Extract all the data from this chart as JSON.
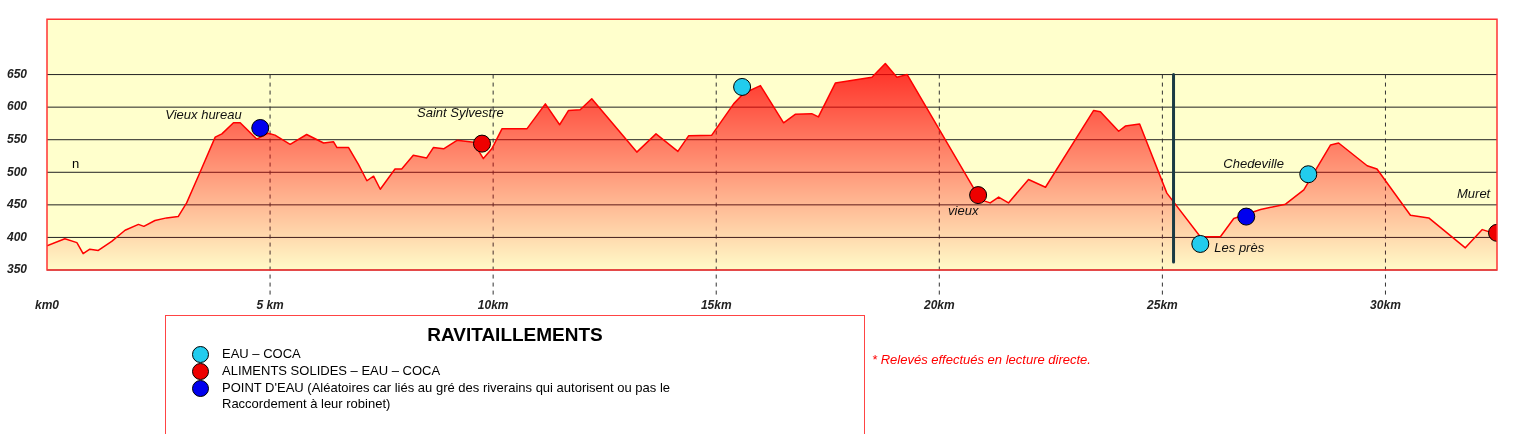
{
  "chart_data": {
    "type": "area",
    "ylabel": null,
    "legend_title": "RAVITAILLEMENTS",
    "legend": "bottom",
    "grid": true,
    "line_style": "solid",
    "xlim": [
      0,
      32.5
    ],
    "ylim": [
      350,
      735
    ],
    "xticks": [
      {
        "value": 0,
        "label": "km0"
      },
      {
        "value": 5,
        "label": "5 km"
      },
      {
        "value": 10,
        "label": "10km"
      },
      {
        "value": 15,
        "label": "15km"
      },
      {
        "value": 20,
        "label": "20km"
      },
      {
        "value": 25,
        "label": "25km"
      },
      {
        "value": 30,
        "label": "30km"
      }
    ],
    "yticks": [
      350,
      400,
      450,
      500,
      550,
      600,
      650
    ],
    "series": [
      {
        "color": "#ff0000",
        "marker": "none",
        "x": [
          0,
          0.4,
          0.67,
          0.81,
          0.96,
          1.15,
          1.45,
          1.75,
          2.05,
          2.17,
          2.42,
          2.68,
          2.94,
          3.13,
          3.43,
          3.77,
          3.92,
          4.18,
          4.33,
          4.7,
          4.96,
          5.11,
          5.45,
          5.82,
          6.2,
          6.42,
          6.5,
          6.76,
          6.98,
          7.17,
          7.32,
          7.47,
          7.8,
          7.95,
          8.21,
          8.51,
          8.66,
          8.89,
          9.19,
          9.56,
          9.78,
          9.97,
          10.2,
          10.76,
          11.17,
          11.49,
          11.69,
          11.95,
          12.21,
          13.22,
          13.65,
          14.14,
          14.38,
          14.9,
          15.39,
          15.61,
          15.99,
          16.51,
          16.77,
          17.14,
          17.29,
          17.67,
          18.49,
          18.79,
          19.05,
          19.28,
          20.92,
          21.14,
          21.33,
          21.55,
          22,
          22.38,
          23.46,
          23.61,
          24.02,
          24.17,
          24.49,
          25.1,
          25.85,
          26.3,
          26.6,
          27.2,
          27.76,
          28.17,
          28.77,
          28.95,
          29.59,
          29.81,
          30.56,
          30.97,
          31.79,
          32.17,
          32.5
        ],
        "values": [
          387,
          398,
          392,
          375,
          382,
          380,
          394,
          411,
          420,
          417,
          426,
          430,
          432,
          453,
          500,
          554,
          559,
          576,
          576,
          551,
          560,
          557,
          543,
          558,
          545,
          547,
          538,
          538,
          512,
          487,
          494,
          474,
          505,
          505,
          526,
          522,
          538,
          536,
          549,
          546,
          521,
          536,
          567,
          567,
          605,
          573,
          595,
          596,
          613,
          531,
          559,
          532,
          556,
          557,
          605,
          621,
          633,
          576,
          589,
          590,
          585,
          637,
          646,
          667,
          646,
          650,
          458,
          453,
          462,
          453,
          489,
          477,
          595,
          593,
          563,
          571,
          574,
          468,
          401,
          401,
          429,
          443,
          451,
          473,
          542,
          545,
          510,
          505,
          434,
          430,
          384,
          412,
          405
        ]
      },
      {
        "type": "scatter",
        "name": "EAU – COCA",
        "color": "#22ccee",
        "marker": "circle",
        "x": [
          15.58,
          25.85,
          28.27
        ],
        "values": [
          631,
          390,
          497
        ]
      },
      {
        "type": "scatter",
        "name": "ALIMENTS SOLIDES – EAU – COCA",
        "color": "#ee0000",
        "marker": "circle",
        "x": [
          9.75,
          20.87,
          32.5
        ],
        "values": [
          544,
          465,
          407
        ]
      },
      {
        "type": "scatter",
        "name": "POINT D'EAU (Aléatoires car liés au gré des riverains qui autorisent ou pas le Raccordement à leur robinet)",
        "color": "#0000ee",
        "marker": "circle",
        "x": [
          4.78,
          26.88
        ],
        "values": [
          568,
          432
        ]
      }
    ],
    "ref_lines": [
      {
        "axis": "x",
        "value": 25.25,
        "color": "#1a3a44"
      }
    ],
    "annotations": [
      {
        "text": "Vieux hureau",
        "x": 4.78,
        "y": 568
      },
      {
        "text": "Saint Sylvestre",
        "x": 9.75,
        "y": 544
      },
      {
        "text": "vieux",
        "x": 20.87,
        "y": 465
      },
      {
        "text": "Les près",
        "x": 25.85,
        "y": 390
      },
      {
        "text": "Chedeville",
        "x": 28.27,
        "y": 497
      },
      {
        "text": "Muret",
        "x": 32.5,
        "y": 407
      },
      "n",
      "* Relevés effectués en lecture directe."
    ]
  }
}
